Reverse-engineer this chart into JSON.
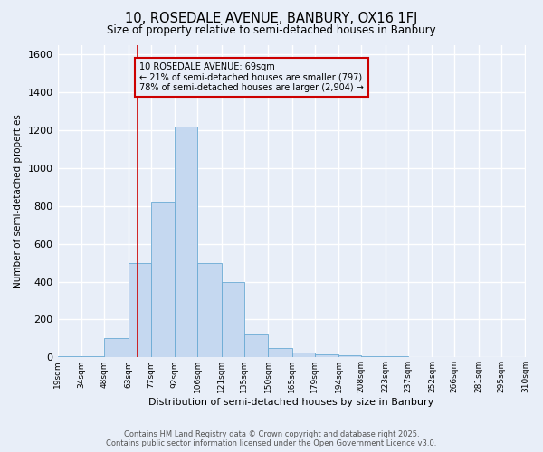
{
  "title1": "10, ROSEDALE AVENUE, BANBURY, OX16 1FJ",
  "title2": "Size of property relative to semi-detached houses in Banbury",
  "xlabel": "Distribution of semi-detached houses by size in Banbury",
  "ylabel": "Number of semi-detached properties",
  "bin_labels": [
    "19sqm",
    "34sqm",
    "48sqm",
    "63sqm",
    "77sqm",
    "92sqm",
    "106sqm",
    "121sqm",
    "135sqm",
    "150sqm",
    "165sqm",
    "179sqm",
    "194sqm",
    "208sqm",
    "223sqm",
    "237sqm",
    "252sqm",
    "266sqm",
    "281sqm",
    "295sqm",
    "310sqm"
  ],
  "bin_edges": [
    19,
    34,
    48,
    63,
    77,
    92,
    106,
    121,
    135,
    150,
    165,
    179,
    194,
    208,
    223,
    237,
    252,
    266,
    281,
    295,
    310
  ],
  "bar_heights": [
    5,
    5,
    100,
    500,
    820,
    1220,
    500,
    400,
    120,
    50,
    25,
    15,
    10,
    5,
    5,
    2,
    0,
    0,
    0,
    0
  ],
  "bar_color": "#c5d8f0",
  "bar_edge_color": "#6aaad4",
  "property_size": 69,
  "property_label": "10 ROSEDALE AVENUE: 69sqm",
  "pct_smaller": 21,
  "pct_larger": 78,
  "count_smaller": 797,
  "count_larger": 2904,
  "annotation_box_color": "#cc0000",
  "red_line_color": "#cc0000",
  "ylim": [
    0,
    1650
  ],
  "yticks": [
    0,
    200,
    400,
    600,
    800,
    1000,
    1200,
    1400,
    1600
  ],
  "background_color": "#e8eef8",
  "grid_color": "#ffffff",
  "title1_fontsize": 10.5,
  "title2_fontsize": 8.5,
  "footer1": "Contains HM Land Registry data © Crown copyright and database right 2025.",
  "footer2": "Contains public sector information licensed under the Open Government Licence v3.0."
}
